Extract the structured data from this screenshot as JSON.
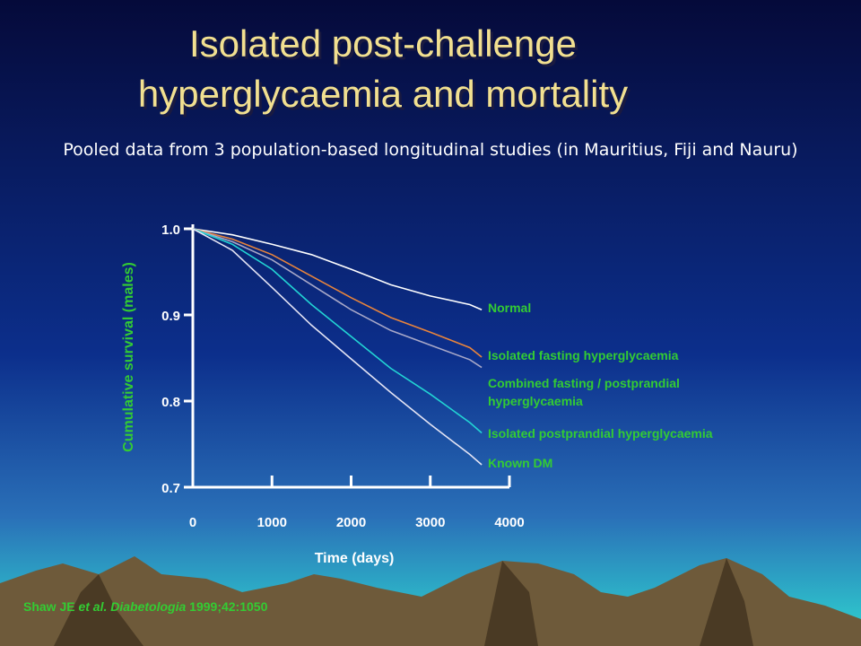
{
  "title": [
    "Isolated post-challenge",
    "hyperglycaemia and mortality"
  ],
  "subtitle": "Pooled data from 3 population-based longitudinal studies (in Mauritius, Fiji and Nauru)",
  "citation": [
    "Shaw JE ",
    "et al.",
    " Diabetologia",
    " 1999;42:1050"
  ],
  "chart_data": {
    "type": "line",
    "x_label": "Time (days)",
    "y_label": "Cumulative survival (males)",
    "x": [
      0,
      500,
      1000,
      1500,
      2000,
      2500,
      3000,
      3500,
      3650
    ],
    "series": [
      {
        "name": "Normal",
        "color": "#ffffff",
        "values": [
          1.0,
          0.993,
          0.982,
          0.97,
          0.953,
          0.935,
          0.922,
          0.912,
          0.906
        ]
      },
      {
        "name": "Isolated fasting hyperglycaemia",
        "color": "#e8843c",
        "values": [
          1.0,
          0.988,
          0.97,
          0.945,
          0.92,
          0.897,
          0.88,
          0.862,
          0.851
        ]
      },
      {
        "name": "Combined fasting / postprandial hyperglycaemia",
        "color": "#a8a8c8",
        "values": [
          1.0,
          0.985,
          0.964,
          0.935,
          0.906,
          0.882,
          0.865,
          0.848,
          0.839
        ]
      },
      {
        "name": "Isolated postprandial hyperglycaemia",
        "color": "#22d4d4",
        "values": [
          1.0,
          0.982,
          0.953,
          0.912,
          0.875,
          0.838,
          0.808,
          0.775,
          0.763
        ]
      },
      {
        "name": "Known DM",
        "color": "#e4e4f4",
        "values": [
          1.0,
          0.975,
          0.932,
          0.888,
          0.849,
          0.81,
          0.773,
          0.738,
          0.726
        ]
      }
    ],
    "xlim": [
      0,
      4000
    ],
    "xticks": [
      0,
      1000,
      2000,
      3000,
      4000
    ],
    "ylim": [
      0.7,
      1.0
    ],
    "yticks": [
      0.7,
      0.8,
      0.9,
      {
        "value": 1,
        "label": "1.0"
      }
    ]
  }
}
